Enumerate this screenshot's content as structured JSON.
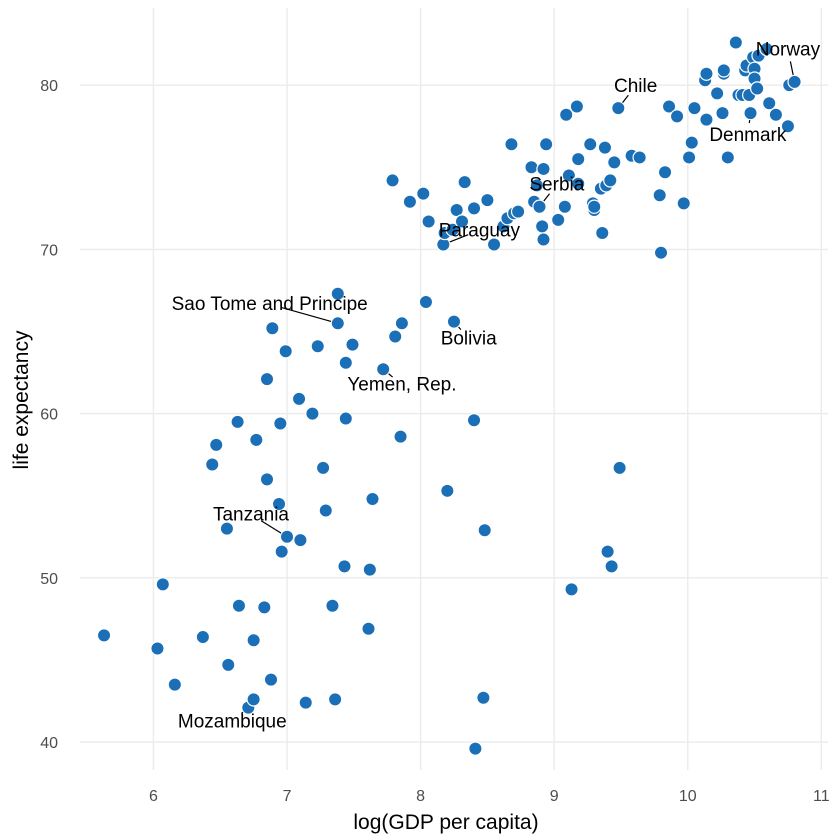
{
  "chart_data": {
    "type": "scatter",
    "xlabel": "log(GDP per capita)",
    "ylabel": "life expectancy",
    "xlim": [
      5.45,
      11.05
    ],
    "ylim": [
      38.3,
      84.7
    ],
    "x_ticks": [
      6,
      7,
      8,
      9,
      10,
      11
    ],
    "y_ticks": [
      40,
      50,
      60,
      70,
      80
    ],
    "grid": true,
    "point_color": "#1b6fb6",
    "points": [
      {
        "x": 5.63,
        "y": 46.5
      },
      {
        "x": 6.03,
        "y": 45.7
      },
      {
        "x": 6.07,
        "y": 49.6
      },
      {
        "x": 6.16,
        "y": 43.5
      },
      {
        "x": 6.37,
        "y": 46.4
      },
      {
        "x": 6.44,
        "y": 56.9
      },
      {
        "x": 6.47,
        "y": 58.1
      },
      {
        "x": 6.55,
        "y": 53.0
      },
      {
        "x": 6.56,
        "y": 44.7
      },
      {
        "x": 6.63,
        "y": 59.5
      },
      {
        "x": 6.64,
        "y": 48.3
      },
      {
        "x": 6.71,
        "y": 42.1
      },
      {
        "x": 6.75,
        "y": 42.6
      },
      {
        "x": 6.75,
        "y": 46.2
      },
      {
        "x": 6.77,
        "y": 58.4
      },
      {
        "x": 6.83,
        "y": 48.2
      },
      {
        "x": 6.85,
        "y": 62.1
      },
      {
        "x": 6.85,
        "y": 56.0
      },
      {
        "x": 6.88,
        "y": 43.8
      },
      {
        "x": 6.89,
        "y": 65.2
      },
      {
        "x": 6.94,
        "y": 54.5
      },
      {
        "x": 6.95,
        "y": 59.4
      },
      {
        "x": 6.96,
        "y": 51.6
      },
      {
        "x": 6.99,
        "y": 63.8
      },
      {
        "x": 7.0,
        "y": 52.5
      },
      {
        "x": 7.09,
        "y": 60.9
      },
      {
        "x": 7.1,
        "y": 52.3
      },
      {
        "x": 7.14,
        "y": 42.4
      },
      {
        "x": 7.19,
        "y": 60.0
      },
      {
        "x": 7.23,
        "y": 64.1
      },
      {
        "x": 7.27,
        "y": 56.7
      },
      {
        "x": 7.29,
        "y": 54.1
      },
      {
        "x": 7.34,
        "y": 48.3
      },
      {
        "x": 7.36,
        "y": 42.6
      },
      {
        "x": 7.38,
        "y": 67.3
      },
      {
        "x": 7.38,
        "y": 65.5
      },
      {
        "x": 7.43,
        "y": 50.7
      },
      {
        "x": 7.44,
        "y": 63.1
      },
      {
        "x": 7.44,
        "y": 59.7
      },
      {
        "x": 7.49,
        "y": 64.2
      },
      {
        "x": 7.61,
        "y": 46.9
      },
      {
        "x": 7.62,
        "y": 50.5
      },
      {
        "x": 7.64,
        "y": 54.8
      },
      {
        "x": 7.72,
        "y": 62.7
      },
      {
        "x": 7.79,
        "y": 74.2
      },
      {
        "x": 7.81,
        "y": 64.7
      },
      {
        "x": 7.85,
        "y": 58.6
      },
      {
        "x": 7.86,
        "y": 65.5
      },
      {
        "x": 7.92,
        "y": 72.9
      },
      {
        "x": 8.02,
        "y": 73.4
      },
      {
        "x": 8.04,
        "y": 66.8
      },
      {
        "x": 8.06,
        "y": 71.7
      },
      {
        "x": 8.17,
        "y": 70.3
      },
      {
        "x": 8.18,
        "y": 71.0
      },
      {
        "x": 8.2,
        "y": 55.3
      },
      {
        "x": 8.24,
        "y": 71.2
      },
      {
        "x": 8.25,
        "y": 65.6
      },
      {
        "x": 8.27,
        "y": 72.4
      },
      {
        "x": 8.31,
        "y": 71.7
      },
      {
        "x": 8.33,
        "y": 74.1
      },
      {
        "x": 8.4,
        "y": 72.5
      },
      {
        "x": 8.4,
        "y": 59.6
      },
      {
        "x": 8.41,
        "y": 39.6
      },
      {
        "x": 8.47,
        "y": 42.7
      },
      {
        "x": 8.48,
        "y": 52.9
      },
      {
        "x": 8.5,
        "y": 73.0
      },
      {
        "x": 8.55,
        "y": 70.3
      },
      {
        "x": 8.62,
        "y": 71.4
      },
      {
        "x": 8.65,
        "y": 71.9
      },
      {
        "x": 8.68,
        "y": 76.4
      },
      {
        "x": 8.7,
        "y": 72.2
      },
      {
        "x": 8.73,
        "y": 72.3
      },
      {
        "x": 8.83,
        "y": 75.0
      },
      {
        "x": 8.85,
        "y": 72.9
      },
      {
        "x": 8.87,
        "y": 73.9
      },
      {
        "x": 8.89,
        "y": 72.6
      },
      {
        "x": 8.91,
        "y": 71.4
      },
      {
        "x": 8.92,
        "y": 74.9
      },
      {
        "x": 8.92,
        "y": 70.6
      },
      {
        "x": 8.94,
        "y": 76.4
      },
      {
        "x": 9.03,
        "y": 71.8
      },
      {
        "x": 9.08,
        "y": 72.6
      },
      {
        "x": 9.09,
        "y": 78.2
      },
      {
        "x": 9.11,
        "y": 74.5
      },
      {
        "x": 9.13,
        "y": 49.3
      },
      {
        "x": 9.17,
        "y": 78.7
      },
      {
        "x": 9.18,
        "y": 75.5
      },
      {
        "x": 9.18,
        "y": 74.0
      },
      {
        "x": 9.27,
        "y": 76.4
      },
      {
        "x": 9.29,
        "y": 72.8
      },
      {
        "x": 9.3,
        "y": 72.4
      },
      {
        "x": 9.3,
        "y": 72.6
      },
      {
        "x": 9.35,
        "y": 73.7
      },
      {
        "x": 9.36,
        "y": 71.0
      },
      {
        "x": 9.38,
        "y": 76.2
      },
      {
        "x": 9.39,
        "y": 73.9
      },
      {
        "x": 9.4,
        "y": 51.6
      },
      {
        "x": 9.42,
        "y": 74.2
      },
      {
        "x": 9.43,
        "y": 50.7
      },
      {
        "x": 9.45,
        "y": 75.3
      },
      {
        "x": 9.48,
        "y": 78.6
      },
      {
        "x": 9.49,
        "y": 56.7
      },
      {
        "x": 9.58,
        "y": 75.7
      },
      {
        "x": 9.64,
        "y": 75.6
      },
      {
        "x": 9.79,
        "y": 73.3
      },
      {
        "x": 9.8,
        "y": 69.8
      },
      {
        "x": 9.83,
        "y": 74.7
      },
      {
        "x": 9.86,
        "y": 78.7
      },
      {
        "x": 9.92,
        "y": 78.1
      },
      {
        "x": 9.97,
        "y": 72.8
      },
      {
        "x": 10.01,
        "y": 75.6
      },
      {
        "x": 10.03,
        "y": 76.5
      },
      {
        "x": 10.05,
        "y": 78.6
      },
      {
        "x": 10.13,
        "y": 80.3
      },
      {
        "x": 10.14,
        "y": 77.9
      },
      {
        "x": 10.14,
        "y": 80.7
      },
      {
        "x": 10.22,
        "y": 79.5
      },
      {
        "x": 10.26,
        "y": 78.3
      },
      {
        "x": 10.27,
        "y": 80.7
      },
      {
        "x": 10.27,
        "y": 80.9
      },
      {
        "x": 10.3,
        "y": 75.6
      },
      {
        "x": 10.36,
        "y": 82.6
      },
      {
        "x": 10.38,
        "y": 79.4
      },
      {
        "x": 10.41,
        "y": 79.4
      },
      {
        "x": 10.43,
        "y": 80.9
      },
      {
        "x": 10.44,
        "y": 81.2
      },
      {
        "x": 10.46,
        "y": 79.4
      },
      {
        "x": 10.47,
        "y": 78.3
      },
      {
        "x": 10.49,
        "y": 81.7
      },
      {
        "x": 10.5,
        "y": 81.0
      },
      {
        "x": 10.5,
        "y": 80.4
      },
      {
        "x": 10.52,
        "y": 79.8
      },
      {
        "x": 10.53,
        "y": 81.8
      },
      {
        "x": 10.59,
        "y": 82.2
      },
      {
        "x": 10.61,
        "y": 78.9
      },
      {
        "x": 10.66,
        "y": 78.2
      },
      {
        "x": 10.75,
        "y": 77.5
      },
      {
        "x": 10.76,
        "y": 80.0
      },
      {
        "x": 10.8,
        "y": 80.2
      }
    ],
    "annotations": [
      {
        "label": "Norway",
        "x": 10.8,
        "y": 80.2,
        "lx": 10.75,
        "ly": 81.8,
        "anchor": "middle"
      },
      {
        "label": "Chile",
        "x": 9.48,
        "y": 78.6,
        "lx": 9.61,
        "ly": 79.6,
        "anchor": "middle"
      },
      {
        "label": "Denmark",
        "x": 10.47,
        "y": 78.3,
        "lx": 10.45,
        "ly": 76.6,
        "anchor": "middle"
      },
      {
        "label": "Serbia",
        "x": 8.89,
        "y": 72.6,
        "lx": 9.02,
        "ly": 73.6,
        "anchor": "middle"
      },
      {
        "label": "Paraguay",
        "x": 8.17,
        "y": 70.3,
        "lx": 8.44,
        "ly": 70.8,
        "anchor": "middle"
      },
      {
        "label": "Sao Tome and Principe",
        "x": 7.38,
        "y": 65.5,
        "lx": 6.87,
        "ly": 66.3,
        "anchor": "middle"
      },
      {
        "label": "Bolivia",
        "x": 8.25,
        "y": 65.6,
        "lx": 8.36,
        "ly": 64.2,
        "anchor": "middle"
      },
      {
        "label": "Yemen, Rep.",
        "x": 7.72,
        "y": 62.7,
        "lx": 7.86,
        "ly": 61.4,
        "anchor": "middle"
      },
      {
        "label": "Tanzania",
        "x": 7.0,
        "y": 52.5,
        "lx": 6.73,
        "ly": 53.5,
        "anchor": "middle"
      },
      {
        "label": "Mozambique",
        "x": 6.71,
        "y": 42.1,
        "lx": 6.59,
        "ly": 40.9,
        "anchor": "middle"
      }
    ]
  }
}
